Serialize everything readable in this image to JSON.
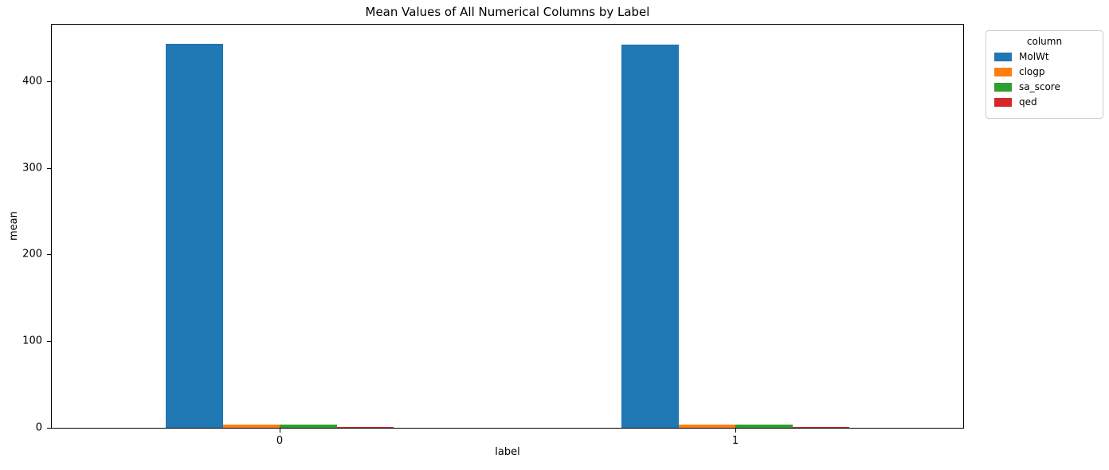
{
  "chart_data": {
    "type": "bar",
    "title": "Mean Values of All Numerical Columns by Label",
    "xlabel": "label",
    "ylabel": "mean",
    "categories": [
      "0",
      "1"
    ],
    "series": [
      {
        "name": "MolWt",
        "color": "#1f77b4",
        "values": [
          443,
          442
        ]
      },
      {
        "name": "clogp",
        "color": "#ff7f0e",
        "values": [
          4.1,
          3.6
        ]
      },
      {
        "name": "sa_score",
        "color": "#2ca02c",
        "values": [
          3.5,
          3.5
        ]
      },
      {
        "name": "qed",
        "color": "#d62728",
        "values": [
          0.7,
          0.7
        ]
      }
    ],
    "ylim": [
      0,
      465
    ],
    "yticks": [
      0,
      100,
      200,
      300,
      400
    ],
    "legend_title": "column",
    "legend_position": "upper right",
    "grid": false,
    "group_width_fraction": 0.5
  }
}
